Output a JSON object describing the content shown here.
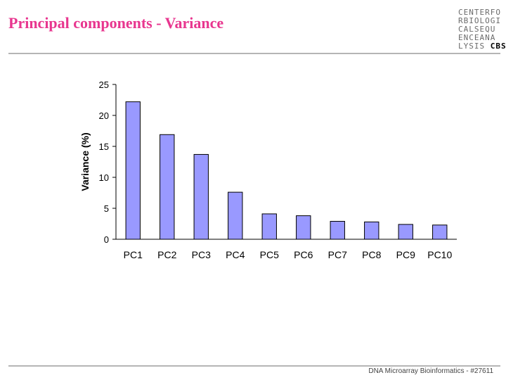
{
  "slide": {
    "title": "Principal components - Variance",
    "footer": "DNA Microarray Bioinformatics - #27611"
  },
  "logo": {
    "lines": [
      "CENTERFO",
      "RBIOLOGI",
      "CALSEQU",
      "ENCEANA",
      "LYSIS"
    ],
    "brand": "CBS"
  },
  "colors": {
    "title": "#e8368f",
    "bar_fill": "#9999ff",
    "bar_stroke": "#000000"
  },
  "chart_data": {
    "type": "bar",
    "categories": [
      "PC1",
      "PC2",
      "PC3",
      "PC4",
      "PC5",
      "PC6",
      "PC7",
      "PC8",
      "PC9",
      "PC10"
    ],
    "values": [
      22.2,
      16.9,
      13.7,
      7.6,
      4.1,
      3.8,
      2.9,
      2.8,
      2.4,
      2.3
    ],
    "title": "",
    "xlabel": "",
    "ylabel": "Variance (%)",
    "ylim": [
      0,
      25
    ],
    "yticks": [
      0,
      5,
      10,
      15,
      20,
      25
    ],
    "grid": false,
    "legend": "none"
  }
}
